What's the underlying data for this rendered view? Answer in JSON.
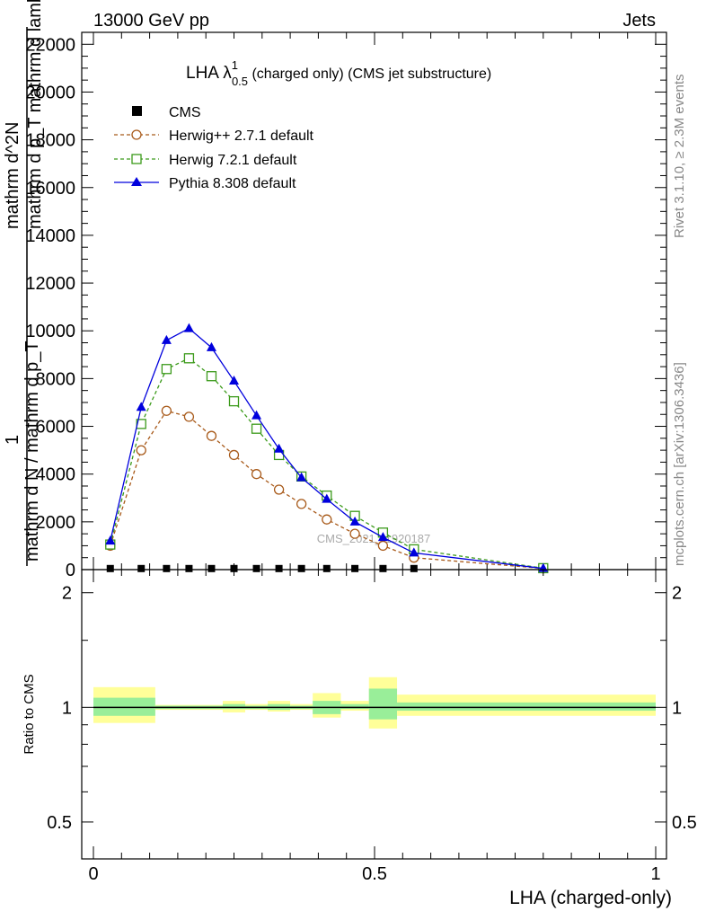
{
  "header": {
    "left": "13000 GeV pp",
    "right": "Jets"
  },
  "side": {
    "rivet": "Rivet 3.1.10, ≥ 2.3M events",
    "mcplots": "mcplots.cern.ch [arXiv:1306.3436]"
  },
  "chart_data": {
    "type": "line",
    "title_main": "LHA λ",
    "title_sup": "1",
    "title_sub": "0.5",
    "title_rest": " (charged only) (CMS jet substructure)",
    "watermark": "CMS_2021_I1920187",
    "xlabel": "LHA (charged-only)",
    "ylabel_top": "1",
    "ylabel_numerator": "mathrm d^2N",
    "ylabel_mid": "mathrm d p_T mathrm d lambda",
    "ylabel_main": "mathrm d N / mathrm d p_T",
    "xlim": [
      0,
      1
    ],
    "ylim": [
      0,
      22500
    ],
    "xticks": [
      0,
      0.5,
      1
    ],
    "xtick_labels": [
      "0",
      "0.5",
      "1"
    ],
    "yticks": [
      0,
      2000,
      4000,
      6000,
      8000,
      10000,
      12000,
      14000,
      16000,
      18000,
      20000,
      22000
    ],
    "ytick_labels": [
      "0",
      "2000",
      "4000",
      "6000",
      "8000",
      "10000",
      "12000",
      "14000",
      "16000",
      "18000",
      "20000",
      "22000"
    ],
    "x": [
      0.03,
      0.085,
      0.13,
      0.17,
      0.21,
      0.25,
      0.29,
      0.33,
      0.37,
      0.415,
      0.465,
      0.515,
      0.57,
      0.8
    ],
    "series": [
      {
        "name": "CMS",
        "color": "#000000",
        "marker": "square-filled",
        "dash": "none",
        "values": [
          45,
          45,
          45,
          45,
          45,
          45,
          45,
          45,
          45,
          45,
          45,
          45,
          45,
          45
        ]
      },
      {
        "name": "Herwig++ 2.7.1 default",
        "color": "#a85a1a",
        "marker": "circle-open",
        "dash": "dashed",
        "values": [
          1000,
          5000,
          6650,
          6400,
          5600,
          4800,
          4000,
          3350,
          2750,
          2100,
          1500,
          1000,
          500,
          50
        ]
      },
      {
        "name": "Herwig 7.2.1 default",
        "color": "#3b9a1a",
        "marker": "square-open",
        "dash": "dashed",
        "values": [
          1050,
          6100,
          8400,
          8850,
          8100,
          7050,
          5900,
          4800,
          3900,
          3100,
          2250,
          1550,
          850,
          60
        ]
      },
      {
        "name": "Pythia 8.308 default",
        "color": "#0000dd",
        "marker": "triangle-filled",
        "dash": "none",
        "values": [
          1200,
          6800,
          9600,
          10100,
          9300,
          7900,
          6450,
          5050,
          3850,
          2950,
          2000,
          1350,
          700,
          50
        ]
      }
    ],
    "ratio": {
      "ylabel": "Ratio to CMS",
      "ylim": [
        0.4,
        2.3
      ],
      "yticks": [
        0.5,
        1,
        2
      ],
      "ytick_labels": [
        "0.5",
        "1",
        "2"
      ],
      "bands": [
        {
          "x0": 0.0,
          "x1": 0.11,
          "inner": [
            0.95,
            1.06
          ],
          "outer": [
            0.91,
            1.13
          ]
        },
        {
          "x0": 0.11,
          "x1": 0.23,
          "inner": [
            0.99,
            1.01
          ],
          "outer": [
            0.985,
            1.015
          ]
        },
        {
          "x0": 0.23,
          "x1": 0.27,
          "inner": [
            0.99,
            1.02
          ],
          "outer": [
            0.97,
            1.04
          ]
        },
        {
          "x0": 0.27,
          "x1": 0.31,
          "inner": [
            0.99,
            1.01
          ],
          "outer": [
            0.985,
            1.02
          ]
        },
        {
          "x0": 0.31,
          "x1": 0.35,
          "inner": [
            0.985,
            1.02
          ],
          "outer": [
            0.975,
            1.04
          ]
        },
        {
          "x0": 0.35,
          "x1": 0.39,
          "inner": [
            0.99,
            1.01
          ],
          "outer": [
            0.985,
            1.02
          ]
        },
        {
          "x0": 0.39,
          "x1": 0.44,
          "inner": [
            0.96,
            1.04
          ],
          "outer": [
            0.94,
            1.09
          ]
        },
        {
          "x0": 0.44,
          "x1": 0.49,
          "inner": [
            0.99,
            1.02
          ],
          "outer": [
            0.98,
            1.04
          ]
        },
        {
          "x0": 0.49,
          "x1": 0.54,
          "inner": [
            0.93,
            1.12
          ],
          "outer": [
            0.88,
            1.2
          ]
        },
        {
          "x0": 0.54,
          "x1": 1.0,
          "inner": [
            0.98,
            1.03
          ],
          "outer": [
            0.95,
            1.08
          ]
        }
      ]
    }
  }
}
